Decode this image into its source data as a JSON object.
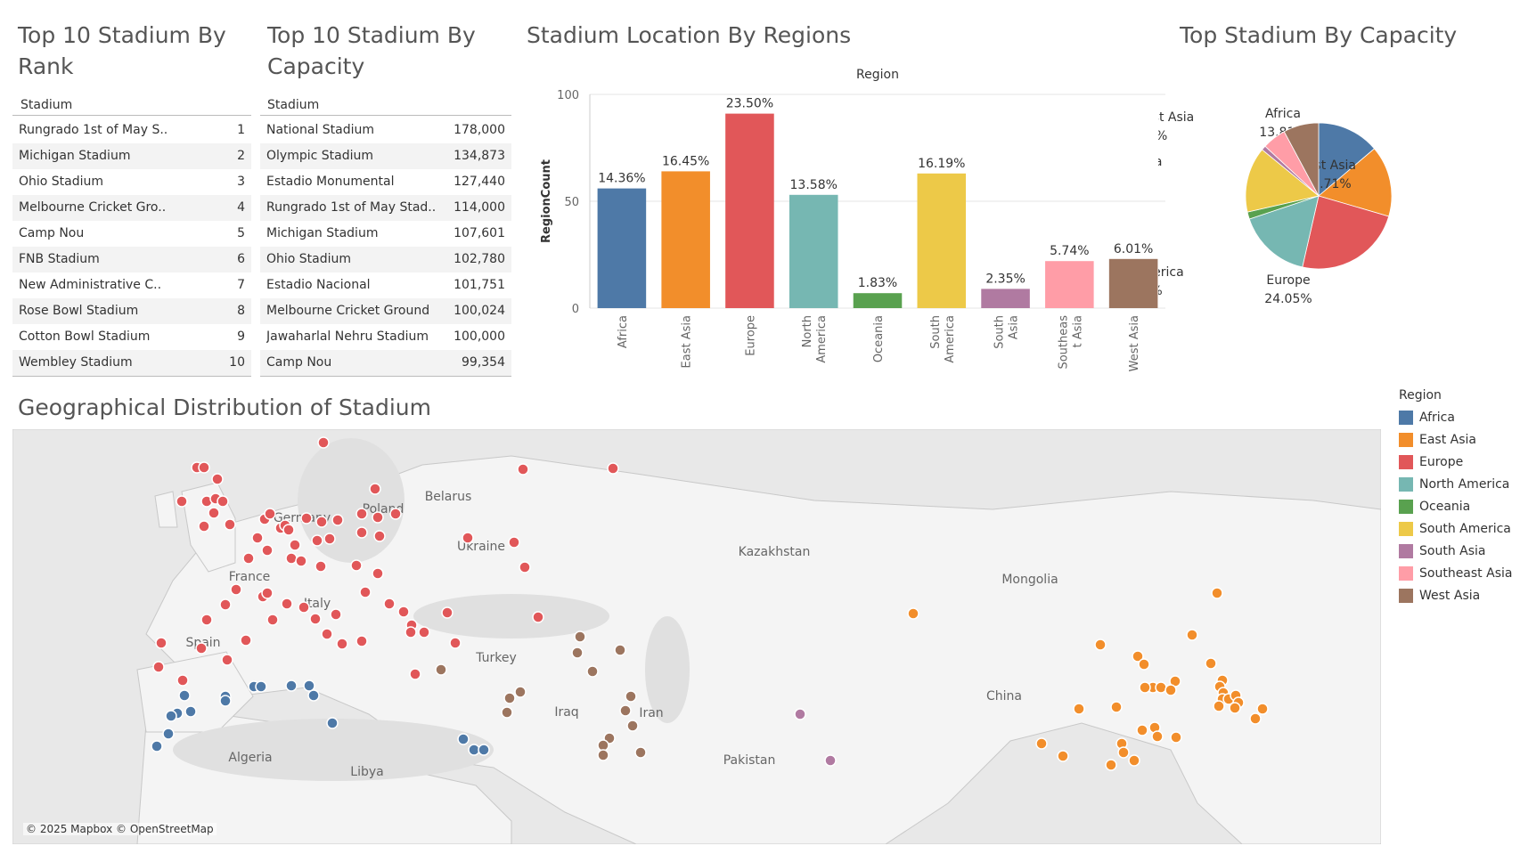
{
  "titles": {
    "rank": "Top 10 Stadium By Rank",
    "capacity": "Top 10 Stadium By Capacity",
    "regions": "Stadium Location By Regions",
    "pie": "Top Stadium By Capacity",
    "map": "Geographical Distribution of Stadium"
  },
  "rank_table": {
    "header": "Stadium",
    "rows": [
      {
        "name": "Rungrado 1st of May S..",
        "value": "1"
      },
      {
        "name": "Michigan Stadium",
        "value": "2"
      },
      {
        "name": "Ohio Stadium",
        "value": "3"
      },
      {
        "name": "Melbourne Cricket Gro..",
        "value": "4"
      },
      {
        "name": "Camp Nou",
        "value": "5"
      },
      {
        "name": "FNB Stadium",
        "value": "6"
      },
      {
        "name": "New Administrative C..",
        "value": "7"
      },
      {
        "name": "Rose Bowl Stadium",
        "value": "8"
      },
      {
        "name": "Cotton Bowl Stadium",
        "value": "9"
      },
      {
        "name": "Wembley Stadium",
        "value": "10"
      }
    ]
  },
  "capacity_table": {
    "header": "Stadium",
    "rows": [
      {
        "name": "National Stadium",
        "value": "178,000"
      },
      {
        "name": "Olympic Stadium",
        "value": "134,873"
      },
      {
        "name": "Estadio Monumental",
        "value": "127,440"
      },
      {
        "name": "Rungrado 1st of May Stad..",
        "value": "114,000"
      },
      {
        "name": "Michigan Stadium",
        "value": "107,601"
      },
      {
        "name": "Ohio Stadium",
        "value": "102,780"
      },
      {
        "name": "Estadio Nacional",
        "value": "101,751"
      },
      {
        "name": "Melbourne Cricket Ground",
        "value": "100,024"
      },
      {
        "name": "Jawaharlal Nehru Stadium",
        "value": "100,000"
      },
      {
        "name": "Camp Nou",
        "value": "99,354"
      }
    ]
  },
  "colors": {
    "Africa": "#4e79a7",
    "East Asia": "#f28e2b",
    "Europe": "#e15759",
    "North America": "#76b7b2",
    "Oceania": "#59a14f",
    "South America": "#edc948",
    "South Asia": "#b07aa1",
    "Southeast Asia": "#ff9da7",
    "West Asia": "#9c755f"
  },
  "chart_data": [
    {
      "type": "bar",
      "title": "Stadium Location By Regions",
      "xlabel": "Region",
      "ylabel": "RegionCount",
      "ylim": [
        0,
        100
      ],
      "yticks": [
        "0",
        "50",
        "100"
      ],
      "grid": true,
      "categories": [
        "Africa",
        "East Asia",
        "Europe",
        "North America",
        "Oceania",
        "South America",
        "South Asia",
        "Southeast Asia",
        "West Asia"
      ],
      "tick_labels": [
        [
          "Africa"
        ],
        [
          "East Asia"
        ],
        [
          "Europe"
        ],
        [
          "North",
          "America"
        ],
        [
          "Oceania"
        ],
        [
          "South",
          "America"
        ],
        [
          "South",
          "Asia"
        ],
        [
          "Southeas",
          "t Asia"
        ],
        [
          "West Asia"
        ]
      ],
      "values": [
        56,
        64,
        91,
        53,
        7,
        63,
        9,
        22,
        23
      ],
      "data_labels": [
        "14.36%",
        "16.45%",
        "23.50%",
        "13.58%",
        "1.83%",
        "16.19%",
        "2.35%",
        "5.74%",
        "6.01%"
      ]
    },
    {
      "type": "pie",
      "title": "Top Stadium By Capacity",
      "slices": [
        {
          "label": "Africa",
          "value": 13.81,
          "text": "13.81%"
        },
        {
          "label": "East Asia",
          "value": 15.71,
          "text": "15.71%"
        },
        {
          "label": "Europe",
          "value": 24.05,
          "text": "24.05%"
        },
        {
          "label": "North America",
          "value": 16.29,
          "text": "16.29%"
        },
        {
          "label": "Oceania",
          "value": 1.6,
          "text": ""
        },
        {
          "label": "South America",
          "value": 14.46,
          "text": "14.46%"
        },
        {
          "label": "South Asia",
          "value": 1.0,
          "text": ""
        },
        {
          "label": "Southeast Asia",
          "value": 5.25,
          "text": "5.25%"
        },
        {
          "label": "West Asia",
          "value": 7.83,
          "text": ""
        }
      ]
    }
  ],
  "legend": {
    "title": "Region",
    "items": [
      "Africa",
      "East Asia",
      "Europe",
      "North America",
      "Oceania",
      "South America",
      "South Asia",
      "Southeast Asia",
      "West Asia"
    ]
  },
  "map": {
    "copyright": "© 2025 Mapbox © OpenStreetMap",
    "labels": [
      "Belarus",
      "Ukraine",
      "Kazakhstan",
      "Mongolia",
      "France",
      "Italy",
      "Spain",
      "Turkey",
      "Iraq",
      "Iran",
      "China",
      "Algeria",
      "Pakistan",
      "Libya",
      "Poland",
      "Germany"
    ]
  }
}
